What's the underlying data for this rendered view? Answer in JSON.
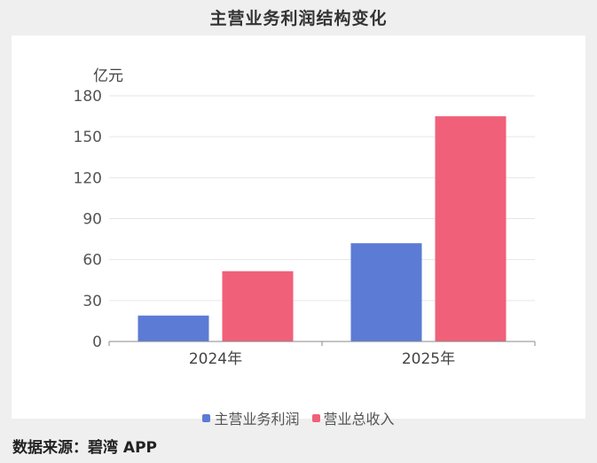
{
  "chart_data": {
    "type": "bar",
    "title": "主营业务利润结构变化",
    "ylabel": "亿元",
    "xlabel": "",
    "categories": [
      "2024年",
      "2025年"
    ],
    "series": [
      {
        "name": "主营业务利润",
        "values": [
          19,
          72
        ],
        "color": "#5b7bd5"
      },
      {
        "name": "营业总收入",
        "values": [
          51.5,
          165
        ],
        "color": "#f06079"
      }
    ],
    "ylim": [
      0,
      180
    ],
    "yticks": [
      "0",
      "30",
      "60",
      "90",
      "120",
      "150",
      "180"
    ],
    "grid": true,
    "legend_position": "bottom"
  },
  "source_text": "数据来源：碧湾 APP"
}
